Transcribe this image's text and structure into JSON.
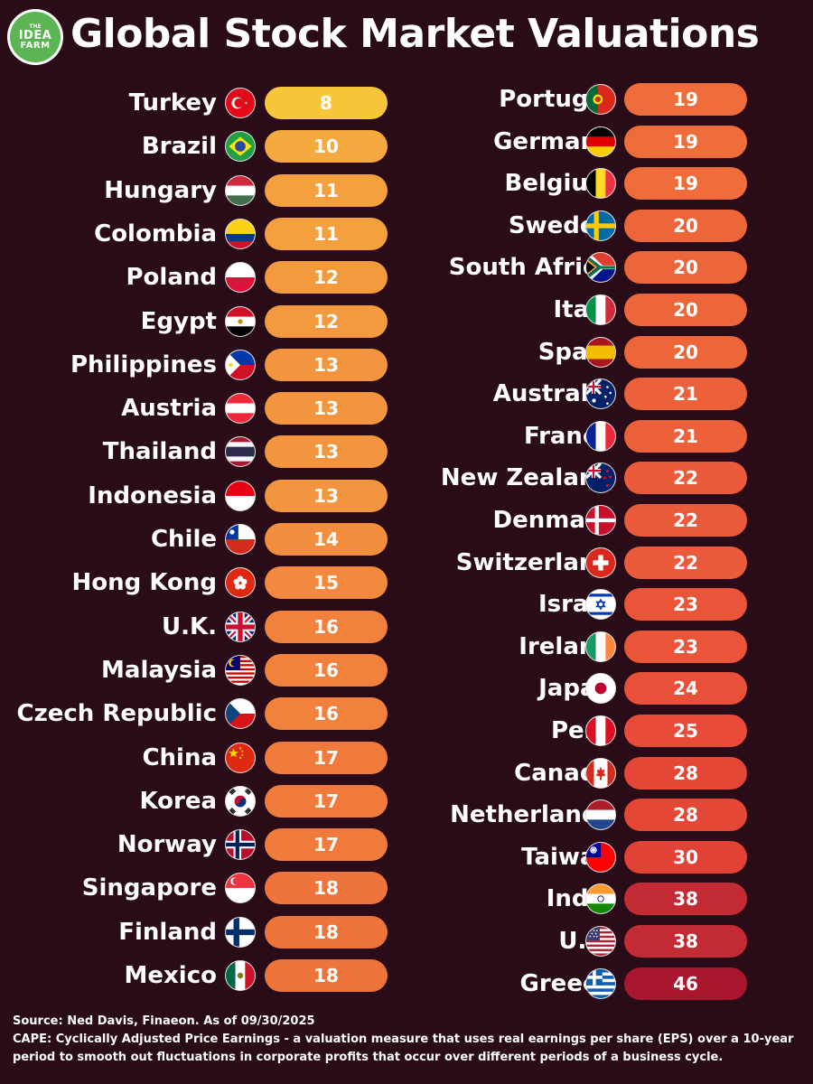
{
  "logo": {
    "line1": "THE",
    "line2": "IDEA",
    "line3": "FARM"
  },
  "title": "Global Stock Market Valuations",
  "left": [
    {
      "country": "Turkey",
      "value": 8,
      "color": "#f7c63a",
      "flag": "turkey"
    },
    {
      "country": "Brazil",
      "value": 10,
      "color": "#f6a93e",
      "flag": "brazil"
    },
    {
      "country": "Hungary",
      "value": 11,
      "color": "#f5a03e",
      "flag": "hungary"
    },
    {
      "country": "Colombia",
      "value": 11,
      "color": "#f5a03e",
      "flag": "colombia"
    },
    {
      "country": "Poland",
      "value": 12,
      "color": "#f49a3e",
      "flag": "poland"
    },
    {
      "country": "Egypt",
      "value": 12,
      "color": "#f49a3e",
      "flag": "egypt"
    },
    {
      "country": "Philippines",
      "value": 13,
      "color": "#f3953e",
      "flag": "philippines"
    },
    {
      "country": "Austria",
      "value": 13,
      "color": "#f3953e",
      "flag": "austria"
    },
    {
      "country": "Thailand",
      "value": 13,
      "color": "#f3953e",
      "flag": "thailand"
    },
    {
      "country": "Indonesia",
      "value": 13,
      "color": "#f3953e",
      "flag": "indonesia"
    },
    {
      "country": "Chile",
      "value": 14,
      "color": "#f28f3e",
      "flag": "chile"
    },
    {
      "country": "Hong Kong",
      "value": 15,
      "color": "#f2893e",
      "flag": "hongkong"
    },
    {
      "country": "U.K.",
      "value": 16,
      "color": "#f1823d",
      "flag": "uk"
    },
    {
      "country": "Malaysia",
      "value": 16,
      "color": "#f1823d",
      "flag": "malaysia"
    },
    {
      "country": "Czech Republic",
      "value": 16,
      "color": "#f1823d",
      "flag": "czech"
    },
    {
      "country": "China",
      "value": 17,
      "color": "#f07b3c",
      "flag": "china"
    },
    {
      "country": "Korea",
      "value": 17,
      "color": "#f07b3c",
      "flag": "korea"
    },
    {
      "country": "Norway",
      "value": 17,
      "color": "#f07b3c",
      "flag": "norway"
    },
    {
      "country": "Singapore",
      "value": 18,
      "color": "#ef743b",
      "flag": "singapore"
    },
    {
      "country": "Finland",
      "value": 18,
      "color": "#ef743b",
      "flag": "finland"
    },
    {
      "country": "Mexico",
      "value": 18,
      "color": "#ef743b",
      "flag": "mexico"
    }
  ],
  "right": [
    {
      "country": "Portugal",
      "value": 19,
      "color": "#ee6d3a",
      "flag": "portugal"
    },
    {
      "country": "Germany",
      "value": 19,
      "color": "#ee6d3a",
      "flag": "germany"
    },
    {
      "country": "Belgium",
      "value": 19,
      "color": "#ee6d3a",
      "flag": "belgium"
    },
    {
      "country": "Sweden",
      "value": 20,
      "color": "#ed663a",
      "flag": "sweden"
    },
    {
      "country": "South Africa",
      "value": 20,
      "color": "#ed663a",
      "flag": "southafrica"
    },
    {
      "country": "Italy",
      "value": 20,
      "color": "#ed663a",
      "flag": "italy"
    },
    {
      "country": "Spain",
      "value": 20,
      "color": "#ed663a",
      "flag": "spain"
    },
    {
      "country": "Australia",
      "value": 21,
      "color": "#ec603a",
      "flag": "australia"
    },
    {
      "country": "France",
      "value": 21,
      "color": "#ec603a",
      "flag": "france"
    },
    {
      "country": "New Zealand",
      "value": 22,
      "color": "#eb5a3a",
      "flag": "newzealand"
    },
    {
      "country": "Denmark",
      "value": 22,
      "color": "#eb5a3a",
      "flag": "denmark"
    },
    {
      "country": "Switzerland",
      "value": 22,
      "color": "#eb5a3a",
      "flag": "switzerland"
    },
    {
      "country": "Israel",
      "value": 23,
      "color": "#ea5539",
      "flag": "israel"
    },
    {
      "country": "Ireland",
      "value": 23,
      "color": "#ea5539",
      "flag": "ireland"
    },
    {
      "country": "Japan",
      "value": 24,
      "color": "#e95039",
      "flag": "japan"
    },
    {
      "country": "Peru",
      "value": 25,
      "color": "#e84c39",
      "flag": "peru"
    },
    {
      "country": "Canada",
      "value": 28,
      "color": "#e54737",
      "flag": "canada"
    },
    {
      "country": "Netherlands",
      "value": 28,
      "color": "#e54737",
      "flag": "netherlands"
    },
    {
      "country": "Taiwan",
      "value": 30,
      "color": "#e24236",
      "flag": "taiwan"
    },
    {
      "country": "India",
      "value": 38,
      "color": "#c22b33",
      "flag": "india"
    },
    {
      "country": "U.S.",
      "value": 38,
      "color": "#c22b33",
      "flag": "us"
    },
    {
      "country": "Greece",
      "value": 46,
      "color": "#a8172e",
      "flag": "greece"
    }
  ],
  "footer": {
    "source": "Source: Ned Davis, Finaeon. As of 09/30/2025",
    "definition": "CAPE: Cyclically Adjusted Price Earnings - a valuation measure that uses real earnings per share (EPS) over a 10-year period to smooth out fluctuations in corporate profits that occur over different periods of a business cycle."
  }
}
